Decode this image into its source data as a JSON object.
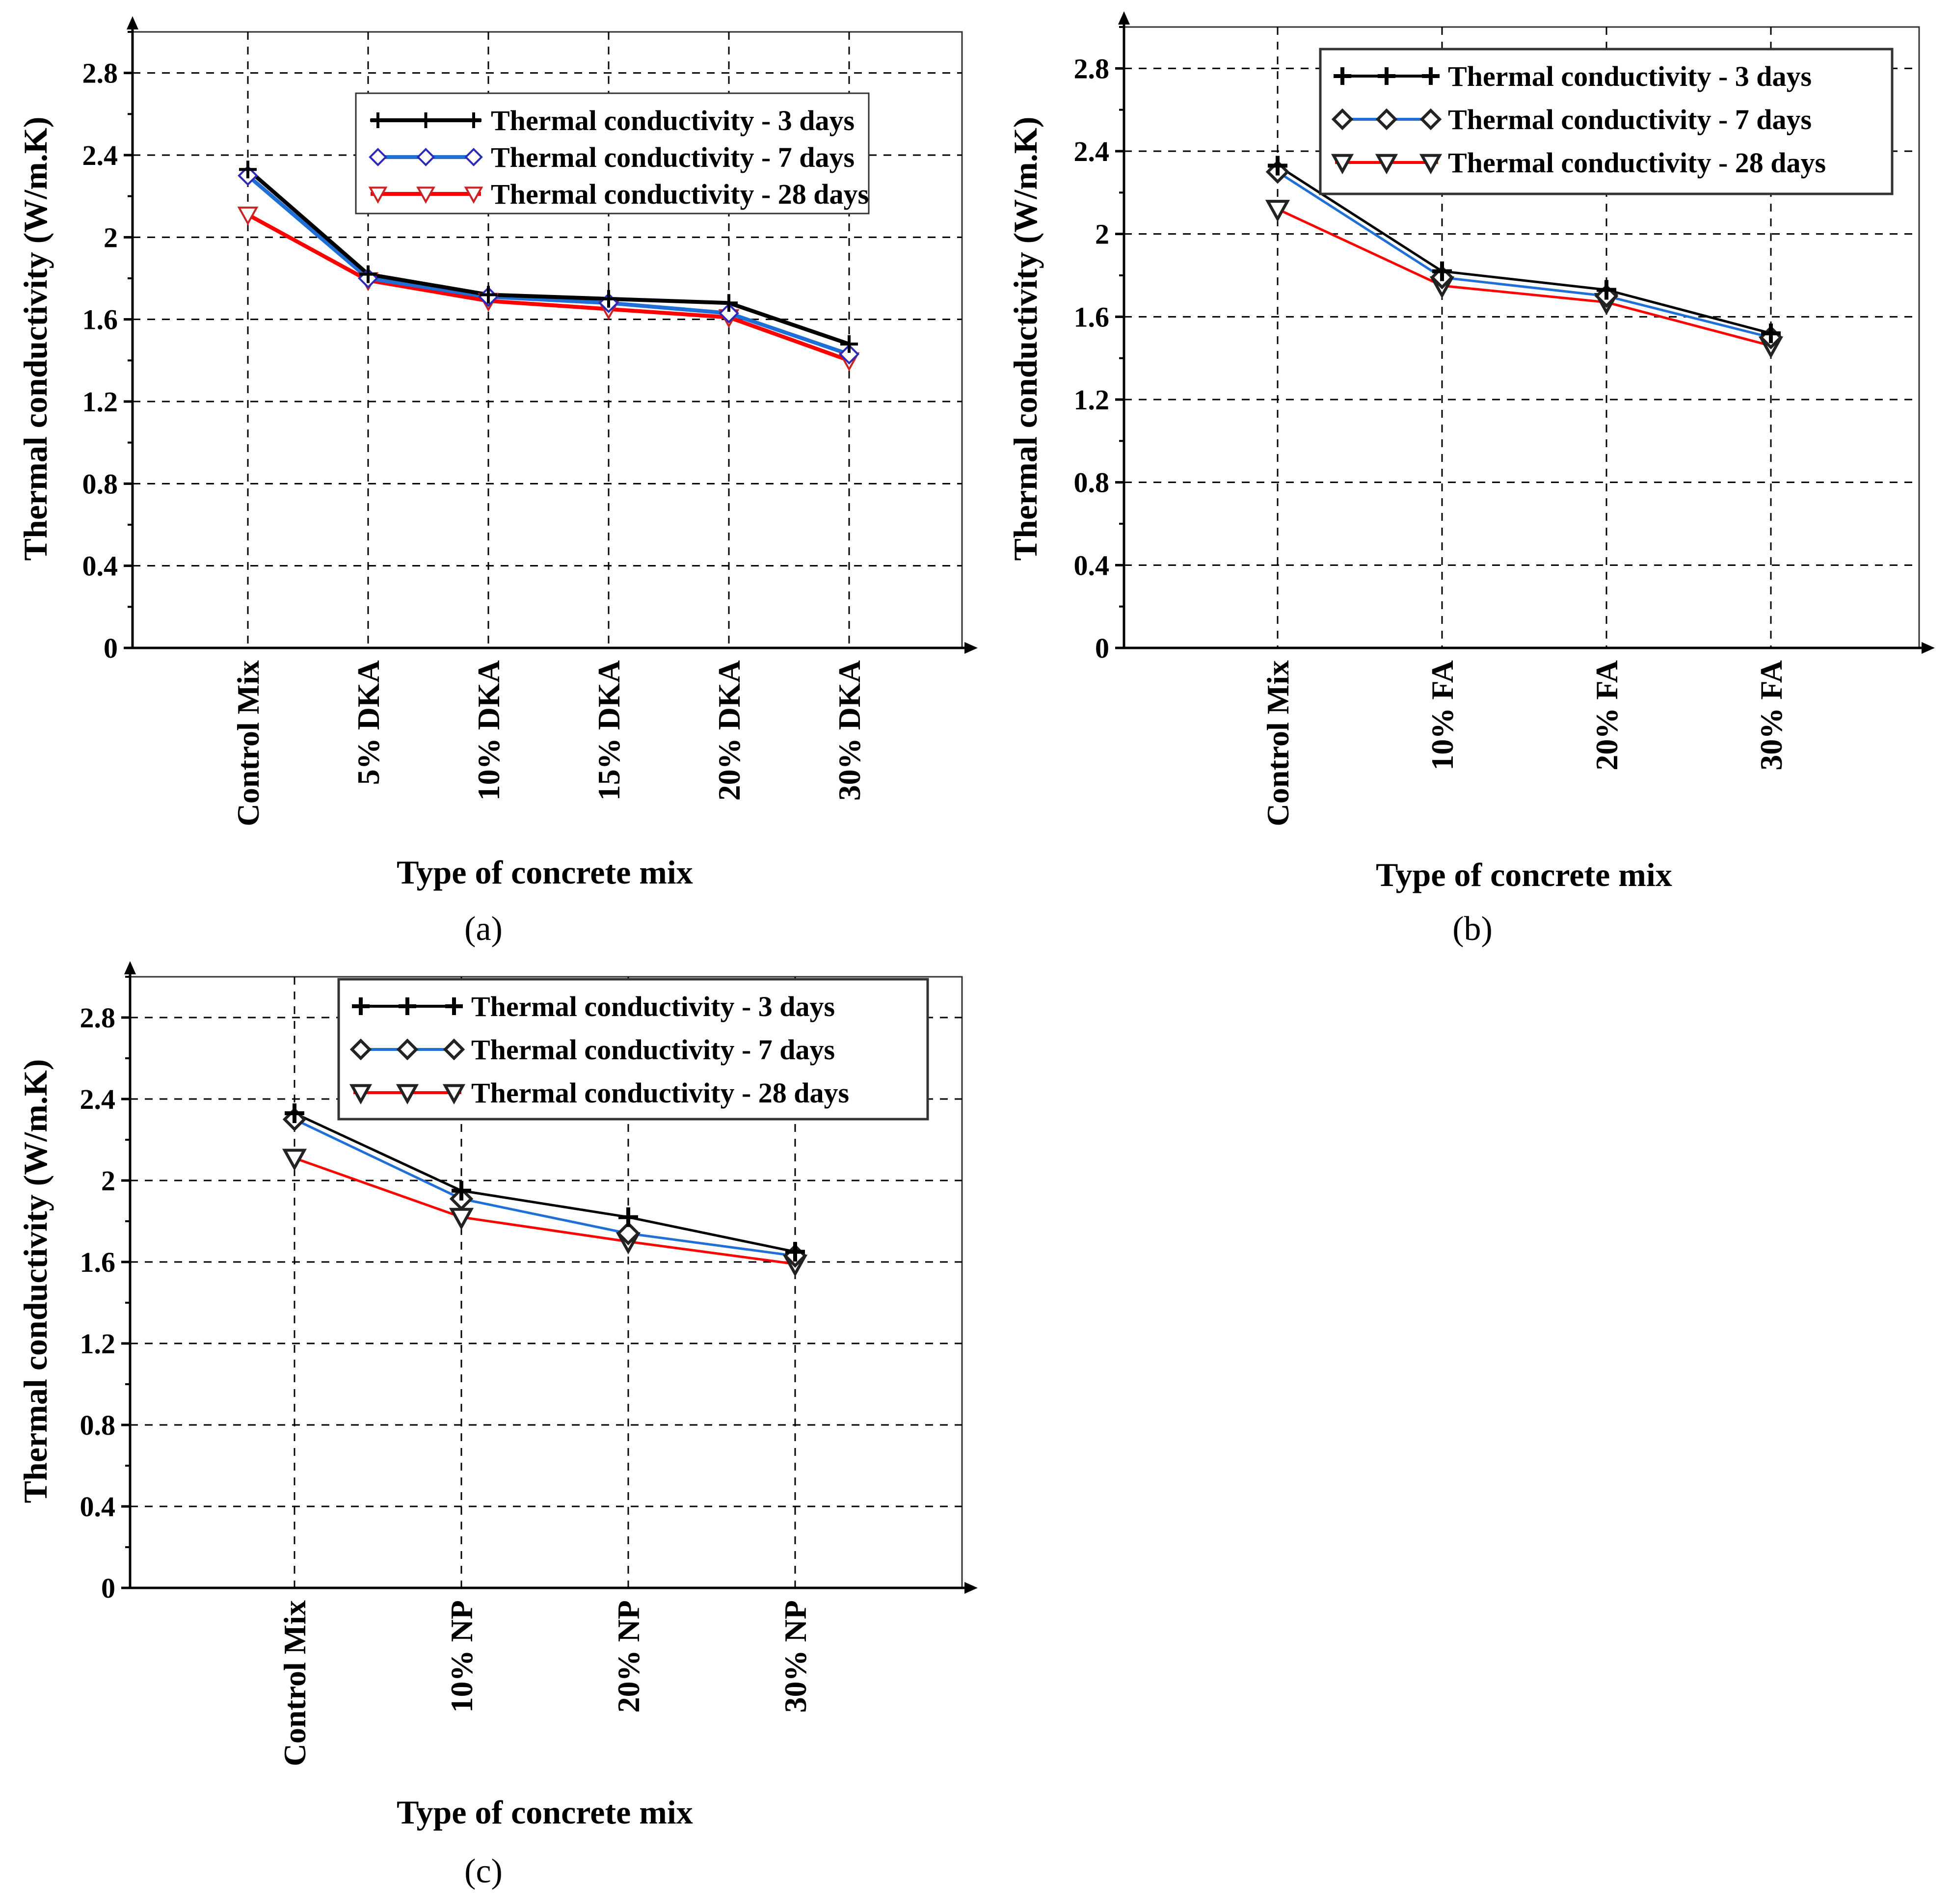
{
  "figure": {
    "panel_labels": [
      "(a)",
      "(b)",
      "(c)"
    ]
  },
  "colors": {
    "days3": "#000000",
    "days7": "#1f6fd6",
    "days28": "#ff0000",
    "marker7": "#2b2bb5"
  },
  "chart_data": [
    {
      "type": "line",
      "panel": "(a)",
      "title": "",
      "xlabel": "Type of concrete mix",
      "ylabel": "Thermal conductivity (W/m.K)",
      "ylim": [
        0,
        3.0
      ],
      "yticks": [
        0,
        0.4,
        0.8,
        1.2,
        1.6,
        2,
        2.4,
        2.8
      ],
      "ytick_labels": [
        "0",
        "0.4",
        "0.8",
        "1.2",
        "1.6",
        "2",
        "2.4",
        "2.8"
      ],
      "categories": [
        "Control Mix",
        "5% DKA",
        "10% DKA",
        "15% DKA",
        "20% DKA",
        "30% DKA"
      ],
      "grid": true,
      "legend_position": "top-right",
      "series": [
        {
          "name": "Thermal conductivity - 3 days",
          "marker": "plus",
          "values": [
            2.33,
            1.82,
            1.72,
            1.7,
            1.68,
            1.48
          ]
        },
        {
          "name": "Thermal conductivity - 7 days",
          "marker": "diamond",
          "values": [
            2.3,
            1.8,
            1.71,
            1.68,
            1.63,
            1.43
          ]
        },
        {
          "name": "Thermal conductivity - 28 days",
          "marker": "triangle-down",
          "values": [
            2.11,
            1.79,
            1.69,
            1.65,
            1.61,
            1.4
          ]
        }
      ]
    },
    {
      "type": "line",
      "panel": "(b)",
      "title": "",
      "xlabel": "Type of concrete mix",
      "ylabel": "Thermal conductivity (W/m.K)",
      "ylim": [
        0,
        3.0
      ],
      "yticks": [
        0,
        0.4,
        0.8,
        1.2,
        1.6,
        2,
        2.4,
        2.8
      ],
      "ytick_labels": [
        "0",
        "0.4",
        "0.8",
        "1.2",
        "1.6",
        "2",
        "2.4",
        "2.8"
      ],
      "categories": [
        "Control Mix",
        "10% FA",
        "20% FA",
        "30% FA"
      ],
      "grid": true,
      "legend_position": "top-right",
      "series": [
        {
          "name": "Thermal conductivity - 3 days",
          "marker": "plus",
          "values": [
            2.33,
            1.82,
            1.73,
            1.52
          ]
        },
        {
          "name": "Thermal conductivity - 7 days",
          "marker": "diamond",
          "values": [
            2.3,
            1.79,
            1.7,
            1.5
          ]
        },
        {
          "name": "Thermal conductivity - 28 days",
          "marker": "triangle-down",
          "values": [
            2.12,
            1.75,
            1.67,
            1.46
          ]
        }
      ]
    },
    {
      "type": "line",
      "panel": "(c)",
      "title": "",
      "xlabel": "Type of concrete mix",
      "ylabel": "Thermal conductivity (W/m.K)",
      "ylim": [
        0,
        3.0
      ],
      "yticks": [
        0,
        0.4,
        0.8,
        1.2,
        1.6,
        2,
        2.4,
        2.8
      ],
      "ytick_labels": [
        "0",
        "0.4",
        "0.8",
        "1.2",
        "1.6",
        "2",
        "2.4",
        "2.8"
      ],
      "categories": [
        "Control Mix",
        "10% NP",
        "20% NP",
        "30% NP"
      ],
      "grid": true,
      "legend_position": "top-right",
      "series": [
        {
          "name": "Thermal conductivity - 3 days",
          "marker": "plus",
          "values": [
            2.33,
            1.95,
            1.82,
            1.65
          ]
        },
        {
          "name": "Thermal conductivity - 7 days",
          "marker": "diamond",
          "values": [
            2.3,
            1.91,
            1.74,
            1.63
          ]
        },
        {
          "name": "Thermal conductivity - 28 days",
          "marker": "triangle-down",
          "values": [
            2.11,
            1.82,
            1.7,
            1.59
          ]
        }
      ]
    }
  ]
}
